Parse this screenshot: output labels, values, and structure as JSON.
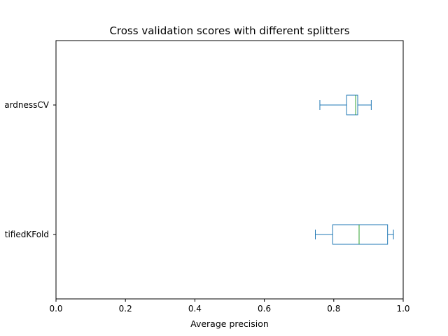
{
  "chart_data": {
    "type": "boxplot",
    "orientation": "horizontal",
    "title": "Cross validation scores with different splitters",
    "xlabel": "Average precision",
    "ylabel": "",
    "xlim": [
      0.0,
      1.0
    ],
    "x_ticks": [
      "0.0",
      "0.2",
      "0.4",
      "0.6",
      "0.8",
      "1.0"
    ],
    "grid": false,
    "colors": {
      "box": "#1f77b4",
      "median": "#2ca02c"
    },
    "series": [
      {
        "label": "StratifiedKFold",
        "display_label": "tifiedKFold",
        "whisker_low": 0.747,
        "q1": 0.797,
        "median": 0.873,
        "q3": 0.955,
        "whisker_high": 0.972
      },
      {
        "label": "InstanceHardnessCV",
        "display_label": "ardnessCV",
        "whisker_low": 0.76,
        "q1": 0.837,
        "median": 0.863,
        "q3": 0.869,
        "whisker_high": 0.908
      }
    ]
  }
}
